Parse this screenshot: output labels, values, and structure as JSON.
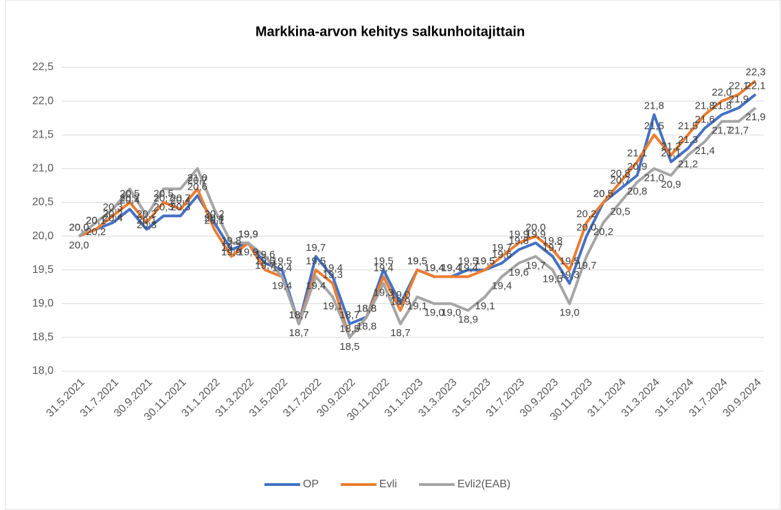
{
  "chart_data": {
    "type": "line",
    "title": "Markkina-arvon kehitys salkunhoitajittain",
    "categories": [
      "31.5.2021",
      null,
      "31.7.2021",
      null,
      "30.9.2021",
      null,
      "30.11.2021",
      null,
      "31.1.2022",
      null,
      "31.3.2022",
      null,
      "31.5.2022",
      null,
      "31.7.2022",
      null,
      "30.9.2022",
      null,
      "30.11.2022",
      null,
      "31.1.2023",
      null,
      "31.3.2023",
      null,
      "31.5.2023",
      null,
      "31.7.2023",
      null,
      "30.9.2023",
      null,
      "30.11.2023",
      null,
      "31.1.2024",
      null,
      "31.3.2024",
      null,
      "31.5.2024",
      null,
      "31.7.2024",
      null,
      "30.9.2024"
    ],
    "series": [
      {
        "name": "OP",
        "color": "#4472c4",
        "values": [
          20.0,
          20.1,
          20.2,
          20.4,
          20.1,
          20.3,
          20.3,
          20.6,
          20.2,
          19.8,
          19.9,
          19.6,
          19.5,
          18.7,
          19.7,
          19.4,
          18.7,
          18.8,
          19.5,
          19.0,
          19.5,
          19.4,
          19.4,
          19.5,
          19.5,
          19.6,
          19.8,
          19.9,
          19.7,
          19.3,
          20.0,
          20.5,
          20.7,
          20.9,
          21.8,
          21.1,
          21.3,
          21.6,
          21.8,
          21.9,
          22.1
        ],
        "value_labels": [
          "20,0",
          "20,1",
          "20,2",
          "20,4",
          "20,1",
          "20,3",
          "20,3",
          "20,6",
          "20,2",
          "19,8",
          "19,9",
          "19,6",
          "19,5",
          "18,7",
          "19,7",
          "19,4",
          "18,7",
          "18,8",
          "19,5",
          "19,0",
          "19,5",
          "19,4",
          "19,4",
          "19,5",
          "19,5",
          "19,6",
          "19,8",
          "19,9",
          "19,7",
          "19,3",
          "20,0",
          "20,5",
          "20,7",
          "20,9",
          "21,8",
          "21,1",
          "21,3",
          "21,6",
          "21,8",
          "21,9",
          "22,1"
        ]
      },
      {
        "name": "Evli",
        "color": "#ed7d31",
        "values": [
          20.0,
          20.1,
          20.3,
          20.5,
          20.2,
          20.5,
          20.4,
          20.7,
          20.1,
          19.7,
          19.9,
          19.5,
          19.4,
          18.7,
          19.5,
          19.3,
          18.5,
          18.8,
          19.4,
          18.9,
          19.5,
          19.4,
          19.4,
          19.4,
          19.5,
          19.7,
          19.9,
          20.0,
          19.8,
          19.5,
          20.2,
          20.5,
          20.8,
          21.1,
          21.5,
          21.2,
          21.5,
          21.8,
          22.0,
          22.1,
          22.3
        ],
        "value_labels": [
          "20,0",
          "20,1",
          "20,3",
          "20,5",
          "20,2",
          "20,5",
          "20,4",
          "20,7",
          "20,1",
          "19,7",
          "19,9",
          "19,5",
          "19,4",
          "18,7",
          "19,5",
          "19,3",
          "18,5",
          "18,8",
          "19,4",
          "18,9",
          "19,5",
          "19,4",
          "19,4",
          "19,4",
          "19,5",
          "19,7",
          "19,9",
          "20,0",
          "19,8",
          "19,5",
          "20,2",
          "20,5",
          "20,8",
          "21,1",
          "21,5",
          "21,2",
          "21,5",
          "21,8",
          "22,0",
          "22,1",
          "22,3"
        ]
      },
      {
        "name": "Evli2(EAB)",
        "color": "#a5a5a5",
        "values": [
          20.0,
          20.2,
          20.4,
          20.7,
          20.3,
          20.7,
          20.7,
          21.0,
          20.4,
          19.9,
          19.9,
          19.7,
          19.4,
          18.7,
          19.4,
          19.1,
          18.5,
          18.8,
          19.3,
          18.7,
          19.1,
          19.0,
          19.0,
          18.9,
          19.1,
          19.4,
          19.6,
          19.7,
          19.5,
          19.0,
          19.7,
          20.2,
          20.5,
          20.8,
          21.0,
          20.9,
          21.2,
          21.4,
          21.7,
          21.7,
          21.9
        ],
        "value_labels": [
          "20,0",
          "20,2",
          "20,4",
          "20,7",
          "20,3",
          "20,7",
          "20,7",
          "21,0",
          "20,4",
          "19,9",
          "19,9",
          "19,7",
          "19,4",
          "18,7",
          "19,4",
          "19,1",
          "18,5",
          "18,8",
          "19,3",
          "18,7",
          "19,1",
          "19,0",
          "19,0",
          "18,9",
          "19,1",
          "19,4",
          "19,6",
          "19,7",
          "19,5",
          "19,0",
          "19,7",
          "20,2",
          "20,5",
          "20,8",
          "21,0",
          "20,9",
          "21,2",
          "21,4",
          "21,7",
          "21,7",
          "21,9"
        ]
      }
    ],
    "ylim": [
      18.0,
      22.5
    ],
    "yticks": [
      {
        "value": 18.0,
        "label": "18,0"
      },
      {
        "value": 18.5,
        "label": "18,5"
      },
      {
        "value": 19.0,
        "label": "19,0"
      },
      {
        "value": 19.5,
        "label": "19,5"
      },
      {
        "value": 20.0,
        "label": "20,0"
      },
      {
        "value": 20.5,
        "label": "20,5"
      },
      {
        "value": 21.0,
        "label": "21,0"
      },
      {
        "value": 21.5,
        "label": "21,5"
      },
      {
        "value": 22.0,
        "label": "22,0"
      },
      {
        "value": 22.5,
        "label": "22,5"
      }
    ],
    "grid": true,
    "legend": "bottom"
  }
}
